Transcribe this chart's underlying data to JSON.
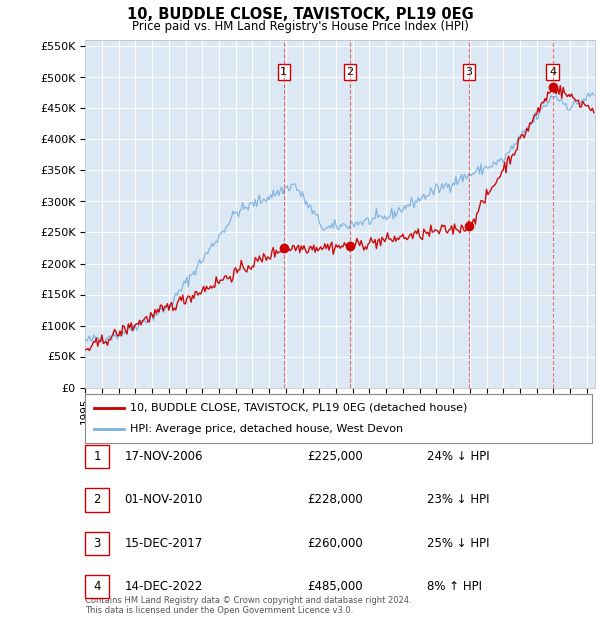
{
  "title": "10, BUDDLE CLOSE, TAVISTOCK, PL19 0EG",
  "subtitle": "Price paid vs. HM Land Registry's House Price Index (HPI)",
  "ylabel_ticks": [
    "£0",
    "£50K",
    "£100K",
    "£150K",
    "£200K",
    "£250K",
    "£300K",
    "£350K",
    "£400K",
    "£450K",
    "£500K",
    "£550K"
  ],
  "ytick_values": [
    0,
    50000,
    100000,
    150000,
    200000,
    250000,
    300000,
    350000,
    400000,
    450000,
    500000,
    550000
  ],
  "ylim": [
    0,
    560000
  ],
  "xlim_start": 1995.0,
  "xlim_end": 2025.5,
  "background_color": "#dce9f5",
  "grid_color": "#ffffff",
  "sale_years_f": [
    2006.878,
    2010.836,
    2017.956,
    2022.956
  ],
  "sale_prices": [
    225000,
    228000,
    260000,
    485000
  ],
  "sale_labels": [
    "1",
    "2",
    "3",
    "4"
  ],
  "legend_property": "10, BUDDLE CLOSE, TAVISTOCK, PL19 0EG (detached house)",
  "legend_hpi": "HPI: Average price, detached house, West Devon",
  "property_color": "#cc0000",
  "hpi_color": "#7aafde",
  "table_rows": [
    {
      "num": "1",
      "date": "17-NOV-2006",
      "price": "£225,000",
      "vs_hpi": "24% ↓ HPI"
    },
    {
      "num": "2",
      "date": "01-NOV-2010",
      "price": "£228,000",
      "vs_hpi": "23% ↓ HPI"
    },
    {
      "num": "3",
      "date": "15-DEC-2017",
      "price": "£260,000",
      "vs_hpi": "25% ↓ HPI"
    },
    {
      "num": "4",
      "date": "14-DEC-2022",
      "price": "£485,000",
      "vs_hpi": "8% ↑ HPI"
    }
  ],
  "footer": "Contains HM Land Registry data © Crown copyright and database right 2024.\nThis data is licensed under the Open Government Licence v3.0.",
  "vline_color": "#dd4444",
  "num_box_color": "#cc0000"
}
